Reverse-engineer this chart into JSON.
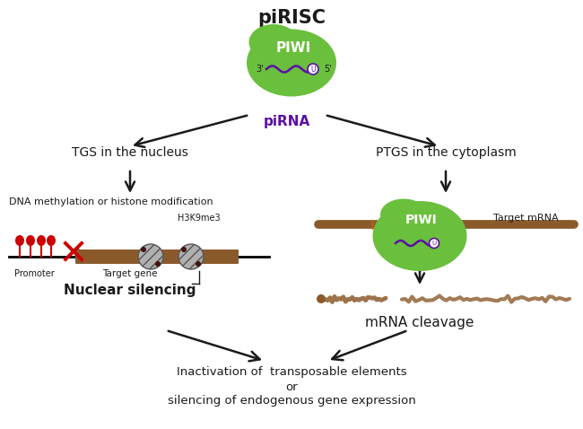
{
  "title": "piRISC",
  "bg_color": "#ffffff",
  "green_color": "#6abf3c",
  "brown_color": "#8B5A2B",
  "brown_light": "#b07040",
  "purple_color": "#5b0ea6",
  "red_color": "#cc0000",
  "dark_color": "#1a1a1a",
  "gray_color": "#888888",
  "piwi_label": "PIWI",
  "pirna_label": "piRNA",
  "tgs_label": "TGS in the nucleus",
  "ptgs_label": "PTGS in the cytoplasm",
  "dna_meth_label": "DNA methylation or histone modification",
  "nuclear_silencing_label": "Nuclear silencing",
  "mrna_cleavage_label": "mRNA cleavage",
  "inactivation_line1": "Inactivation of  transposable elements",
  "inactivation_line2": "or",
  "inactivation_line3": "silencing of endogenous gene expression",
  "h3k9me3_label": "H3K9me3",
  "promoter_label": "Promoter",
  "target_gene_label": "Target gene",
  "target_mrna_label": "Target mRNA",
  "prime3_label": "3'",
  "prime5_label": "5''"
}
